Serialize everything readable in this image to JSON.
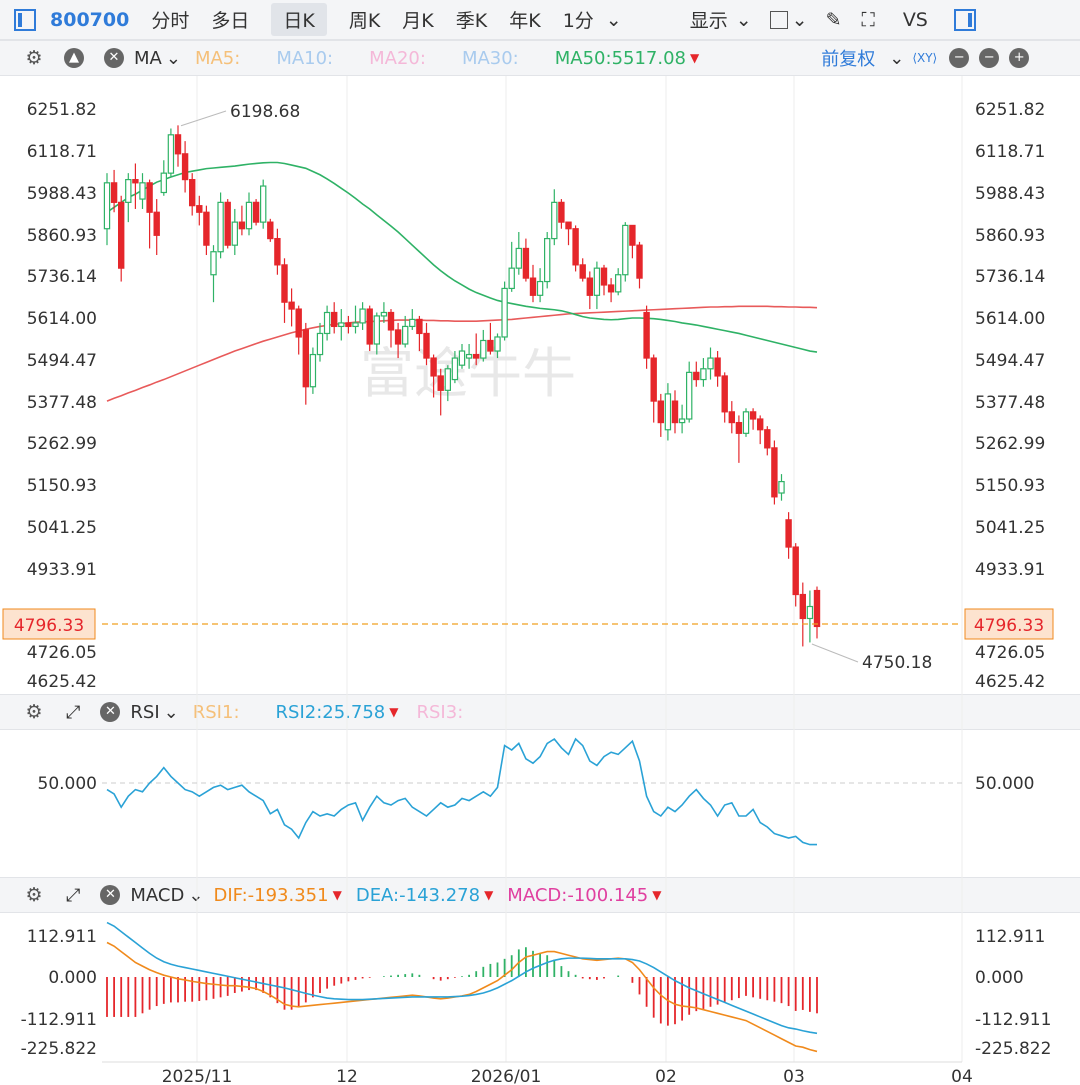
{
  "topbar": {
    "code": "800700",
    "tabs": [
      "分时",
      "多日",
      "日K",
      "周K",
      "月K",
      "季K",
      "年K",
      "1分"
    ],
    "active_tab": "日K",
    "display_label": "显示",
    "vs_label": "VS"
  },
  "ma_bar": {
    "indicator": "MA",
    "ma5": "MA5:",
    "ma10": "MA10:",
    "ma20": "MA20:",
    "ma30": "MA30:",
    "ma50": "MA50:5517.08",
    "adjust": "前复权",
    "colors": {
      "ma5": "#f5c07a",
      "ma10": "#a9cbee",
      "ma20": "#f4b8d8",
      "ma30": "#a9cbee",
      "ma50": "#2fb266"
    }
  },
  "rsi_bar": {
    "indicator": "RSI",
    "rsi1": "RSI1:",
    "rsi2": "RSI2:25.758",
    "rsi3": "RSI3:",
    "colors": {
      "rsi1": "#f5c07a",
      "rsi2": "#2aa2d6",
      "rsi3": "#f4b8d8"
    }
  },
  "macd_bar": {
    "indicator": "MACD",
    "dif": "DIF:-193.351",
    "dea": "DEA:-143.278",
    "macd": "MACD:-100.145",
    "colors": {
      "dif": "#f08a1c",
      "dea": "#2aa2d6",
      "macd": "#e040a0"
    }
  },
  "watermark": "富途牛牛",
  "chart_data": {
    "type": "candlestick",
    "price_axis_ticks": [
      "6251.82",
      "6118.71",
      "5988.43",
      "5860.93",
      "5736.14",
      "5614.00",
      "5494.47",
      "5377.48",
      "5262.99",
      "5150.93",
      "5041.25",
      "4933.91",
      "4726.05",
      "4625.42"
    ],
    "current_price": "4796.33",
    "high_label": "6198.68",
    "low_label": "4750.18",
    "x_labels": [
      "2025/11",
      "12",
      "2026/01",
      "02",
      "03",
      "04"
    ],
    "rsi_ticks": [
      "50.000"
    ],
    "macd_ticks": [
      "112.911",
      "0.000",
      "-112.911",
      "-225.822"
    ],
    "colors": {
      "up": "#2fb266",
      "down": "#e5262b",
      "ma50": "#2fb266",
      "ma_red": "#e85a5a",
      "rsi": "#2aa2d6",
      "dif": "#f08a1c",
      "dea": "#2aa2d6",
      "price_line": "#f0a020"
    },
    "candles": [
      [
        5880,
        6020,
        6050,
        5830
      ],
      [
        6020,
        5960,
        6060,
        5930
      ],
      [
        5960,
        5760,
        5980,
        5720
      ],
      [
        5960,
        6030,
        6050,
        5900
      ],
      [
        6030,
        6020,
        6080,
        5940
      ],
      [
        5970,
        6020,
        6050,
        5940
      ],
      [
        6020,
        5930,
        6030,
        5820
      ],
      [
        5930,
        5860,
        5970,
        5800
      ],
      [
        5990,
        6050,
        6090,
        5980
      ],
      [
        6050,
        6170,
        6190,
        6040
      ],
      [
        6170,
        6110,
        6200,
        6070
      ],
      [
        6110,
        6030,
        6150,
        5990
      ],
      [
        6030,
        5950,
        6050,
        5920
      ],
      [
        5950,
        5930,
        5980,
        5890
      ],
      [
        5930,
        5830,
        5950,
        5800
      ],
      [
        5740,
        5810,
        5830,
        5660
      ],
      [
        5810,
        5960,
        5990,
        5790
      ],
      [
        5960,
        5830,
        5970,
        5820
      ],
      [
        5830,
        5900,
        5940,
        5800
      ],
      [
        5900,
        5880,
        5950,
        5860
      ],
      [
        5880,
        5960,
        5990,
        5860
      ],
      [
        5960,
        5900,
        5970,
        5890
      ],
      [
        5900,
        6010,
        6030,
        5880
      ],
      [
        5900,
        5850,
        5910,
        5840
      ],
      [
        5850,
        5770,
        5880,
        5740
      ],
      [
        5770,
        5660,
        5790,
        5600
      ],
      [
        5660,
        5640,
        5700,
        5590
      ],
      [
        5640,
        5560,
        5650,
        5510
      ],
      [
        5580,
        5420,
        5600,
        5370
      ],
      [
        5420,
        5510,
        5530,
        5400
      ],
      [
        5510,
        5570,
        5600,
        5490
      ],
      [
        5570,
        5630,
        5650,
        5550
      ],
      [
        5630,
        5590,
        5660,
        5570
      ],
      [
        5590,
        5600,
        5640,
        5550
      ],
      [
        5600,
        5590,
        5620,
        5570
      ],
      [
        5590,
        5600,
        5650,
        5570
      ],
      [
        5600,
        5640,
        5660,
        5580
      ],
      [
        5640,
        5540,
        5650,
        5520
      ],
      [
        5540,
        5620,
        5630,
        5510
      ],
      [
        5620,
        5630,
        5660,
        5600
      ],
      [
        5630,
        5580,
        5640,
        5530
      ],
      [
        5580,
        5540,
        5600,
        5500
      ],
      [
        5540,
        5590,
        5620,
        5530
      ],
      [
        5590,
        5610,
        5640,
        5580
      ],
      [
        5610,
        5570,
        5620,
        5520
      ],
      [
        5570,
        5500,
        5600,
        5480
      ],
      [
        5500,
        5450,
        5510,
        5390
      ],
      [
        5450,
        5410,
        5470,
        5340
      ],
      [
        5410,
        5470,
        5480,
        5380
      ],
      [
        5440,
        5500,
        5520,
        5430
      ],
      [
        5480,
        5520,
        5540,
        5470
      ],
      [
        5500,
        5510,
        5540,
        5470
      ],
      [
        5510,
        5500,
        5570,
        5480
      ],
      [
        5500,
        5550,
        5580,
        5490
      ],
      [
        5550,
        5520,
        5600,
        5510
      ],
      [
        5520,
        5560,
        5570,
        5500
      ],
      [
        5560,
        5700,
        5720,
        5550
      ],
      [
        5700,
        5760,
        5840,
        5690
      ],
      [
        5760,
        5820,
        5870,
        5740
      ],
      [
        5820,
        5730,
        5850,
        5720
      ],
      [
        5730,
        5680,
        5770,
        5660
      ],
      [
        5680,
        5720,
        5760,
        5660
      ],
      [
        5720,
        5850,
        5870,
        5700
      ],
      [
        5850,
        5960,
        6000,
        5830
      ],
      [
        5960,
        5900,
        5970,
        5880
      ],
      [
        5900,
        5880,
        5900,
        5830
      ],
      [
        5880,
        5770,
        5890,
        5750
      ],
      [
        5770,
        5730,
        5790,
        5720
      ],
      [
        5730,
        5680,
        5750,
        5640
      ],
      [
        5680,
        5760,
        5780,
        5640
      ],
      [
        5760,
        5710,
        5770,
        5680
      ],
      [
        5710,
        5690,
        5730,
        5660
      ],
      [
        5690,
        5740,
        5760,
        5680
      ],
      [
        5740,
        5890,
        5900,
        5720
      ],
      [
        5890,
        5830,
        5890,
        5790
      ],
      [
        5830,
        5730,
        5840,
        5700
      ],
      [
        5630,
        5500,
        5650,
        5470
      ],
      [
        5500,
        5380,
        5510,
        5320
      ],
      [
        5380,
        5320,
        5400,
        5280
      ],
      [
        5300,
        5400,
        5430,
        5270
      ],
      [
        5380,
        5320,
        5410,
        5290
      ],
      [
        5320,
        5330,
        5370,
        5290
      ],
      [
        5330,
        5460,
        5490,
        5320
      ],
      [
        5460,
        5440,
        5490,
        5420
      ],
      [
        5440,
        5470,
        5500,
        5420
      ],
      [
        5470,
        5500,
        5530,
        5440
      ],
      [
        5500,
        5450,
        5520,
        5420
      ],
      [
        5450,
        5350,
        5460,
        5320
      ],
      [
        5350,
        5320,
        5380,
        5290
      ],
      [
        5320,
        5290,
        5340,
        5210
      ],
      [
        5290,
        5350,
        5360,
        5280
      ],
      [
        5350,
        5330,
        5360,
        5300
      ],
      [
        5330,
        5300,
        5340,
        5260
      ],
      [
        5300,
        5250,
        5310,
        5230
      ],
      [
        5250,
        5120,
        5270,
        5100
      ],
      [
        5130,
        5160,
        5180,
        5110
      ],
      [
        5060,
        4990,
        5080,
        4960
      ],
      [
        4990,
        4870,
        5000,
        4840
      ],
      [
        4870,
        4810,
        4900,
        4740
      ],
      [
        4810,
        4840,
        4880,
        4750
      ],
      [
        4880,
        4790,
        4890,
        4760
      ]
    ],
    "ma50": [
      5930,
      5945,
      5960,
      5975,
      5985,
      5998,
      6010,
      6022,
      6030,
      6038,
      6045,
      6052,
      6056,
      6060,
      6064,
      6066,
      6068,
      6070,
      6072,
      6075,
      6078,
      6080,
      6082,
      6083,
      6083,
      6080,
      6075,
      6070,
      6065,
      6055,
      6045,
      6032,
      6018,
      6003,
      5988,
      5972,
      5955,
      5940,
      5922,
      5905,
      5888,
      5870,
      5850,
      5830,
      5810,
      5790,
      5770,
      5752,
      5736,
      5722,
      5710,
      5698,
      5688,
      5680,
      5672,
      5665,
      5660,
      5656,
      5652,
      5648,
      5645,
      5642,
      5640,
      5638,
      5635,
      5630,
      5624,
      5618,
      5614,
      5612,
      5610,
      5609,
      5610,
      5612,
      5614,
      5614,
      5613,
      5612,
      5610,
      5607,
      5604,
      5600,
      5597,
      5594,
      5590,
      5586,
      5582,
      5578,
      5574,
      5570,
      5565,
      5560,
      5555,
      5550,
      5545,
      5540,
      5535,
      5530,
      5525,
      5520,
      5517
    ],
    "ma_red": [
      5380,
      5388,
      5395,
      5403,
      5410,
      5418,
      5425,
      5433,
      5440,
      5448,
      5456,
      5464,
      5472,
      5480,
      5488,
      5496,
      5504,
      5512,
      5520,
      5527,
      5534,
      5541,
      5548,
      5554,
      5560,
      5566,
      5572,
      5577,
      5582,
      5586,
      5590,
      5593,
      5596,
      5598,
      5600,
      5602,
      5603,
      5604,
      5605,
      5606,
      5607,
      5608,
      5608,
      5608,
      5608,
      5607,
      5607,
      5606,
      5606,
      5605,
      5605,
      5605,
      5605,
      5606,
      5607,
      5608,
      5609,
      5610,
      5612,
      5614,
      5616,
      5618,
      5620,
      5622,
      5624,
      5626,
      5627,
      5628,
      5629,
      5630,
      5631,
      5632,
      5633,
      5634,
      5635,
      5636,
      5637,
      5638,
      5639,
      5640,
      5641,
      5642,
      5643,
      5644,
      5645,
      5646,
      5646,
      5647,
      5647,
      5648,
      5648,
      5648,
      5648,
      5648,
      5647,
      5647,
      5646,
      5646,
      5645,
      5645,
      5644
    ],
    "rsi": [
      47,
      45,
      39,
      44,
      47,
      46,
      50,
      53,
      57,
      53,
      50,
      47,
      46,
      44,
      46,
      48,
      49,
      47,
      48,
      49,
      46,
      44,
      42,
      36,
      38,
      31,
      29,
      25,
      32,
      37,
      35,
      36,
      35,
      38,
      40,
      41,
      33,
      39,
      44,
      41,
      40,
      42,
      43,
      39,
      37,
      35,
      38,
      41,
      39,
      40,
      43,
      42,
      44,
      46,
      44,
      48,
      67,
      65,
      68,
      61,
      59,
      62,
      68,
      70,
      66,
      63,
      70,
      67,
      60,
      58,
      62,
      64,
      63,
      66,
      69,
      60,
      44,
      37,
      35,
      39,
      37,
      40,
      44,
      47,
      43,
      40,
      35,
      40,
      41,
      35,
      35,
      38,
      32,
      30,
      27,
      26,
      25,
      25.758,
      23,
      22,
      22
    ],
    "dif": [
      95,
      85,
      70,
      55,
      40,
      30,
      20,
      12,
      5,
      0,
      -5,
      -8,
      -12,
      -15,
      -18,
      -20,
      -22,
      -24,
      -24,
      -26,
      -28,
      -32,
      -40,
      -50,
      -62,
      -75,
      -80,
      -82,
      -80,
      -78,
      -76,
      -74,
      -72,
      -70,
      -68,
      -66,
      -64,
      -62,
      -60,
      -58,
      -56,
      -54,
      -52,
      -50,
      -52,
      -55,
      -58,
      -60,
      -58,
      -55,
      -52,
      -48,
      -40,
      -30,
      -20,
      -10,
      5,
      20,
      40,
      55,
      60,
      65,
      70,
      70,
      65,
      60,
      55,
      50,
      48,
      46,
      48,
      50,
      52,
      50,
      40,
      20,
      -5,
      -30,
      -50,
      -65,
      -75,
      -80,
      -82,
      -85,
      -90,
      -95,
      -100,
      -105,
      -110,
      -115,
      -120,
      -130,
      -140,
      -150,
      -160,
      -170,
      -180,
      -190,
      -193.351,
      -200,
      -205
    ],
    "dea": [
      150,
      140,
      125,
      110,
      95,
      80,
      65,
      52,
      42,
      35,
      30,
      26,
      22,
      18,
      14,
      10,
      6,
      2,
      -2,
      -6,
      -10,
      -14,
      -18,
      -22,
      -26,
      -30,
      -35,
      -40,
      -45,
      -50,
      -54,
      -58,
      -60,
      -61,
      -62,
      -62,
      -62,
      -61,
      -60,
      -59,
      -58,
      -57,
      -56,
      -55,
      -55,
      -55,
      -55,
      -55,
      -55,
      -54,
      -53,
      -51,
      -48,
      -44,
      -38,
      -30,
      -20,
      -10,
      2,
      14,
      24,
      32,
      40,
      46,
      50,
      52,
      52,
      52,
      51,
      50,
      50,
      50,
      50,
      50,
      48,
      44,
      36,
      26,
      14,
      2,
      -10,
      -20,
      -30,
      -38,
      -46,
      -54,
      -62,
      -70,
      -78,
      -86,
      -94,
      -102,
      -110,
      -118,
      -126,
      -134,
      -140,
      -143.278,
      -148,
      -152,
      -155
    ]
  }
}
